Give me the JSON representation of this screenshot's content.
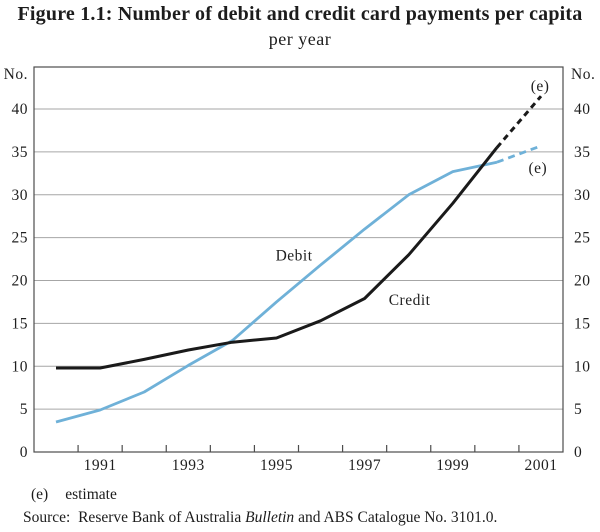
{
  "figure": {
    "title": "Figure 1.1:  Number of debit and credit card payments per capita",
    "subtitle": "per year",
    "footnote_marker": "(e)",
    "footnote_text": "estimate",
    "source_prefix": "Source:  Reserve Bank of Australia ",
    "source_italic": "Bulletin",
    "source_suffix": " and ABS Catalogue No. 3101.0."
  },
  "chart_data": {
    "type": "line",
    "title": "Figure 1.1: Number of debit and credit card payments per capita",
    "subtitle": "per year",
    "ylabel": "No.",
    "ylabel_right": "No.",
    "ylim": [
      0,
      44.9
    ],
    "yticks": [
      0,
      5,
      10,
      15,
      20,
      25,
      30,
      35,
      40
    ],
    "xlim": [
      1990,
      2002
    ],
    "xticks": [
      1991,
      1992,
      1993,
      1994,
      1995,
      1996,
      1997,
      1998,
      1999,
      2000,
      2001
    ],
    "xtick_label_years": [
      1991,
      1993,
      1995,
      1997,
      1999,
      2001
    ],
    "xtick_labels": [
      "1991",
      "1993",
      "1995",
      "1997",
      "1999",
      "2001"
    ],
    "grid": true,
    "legend": "inline-labels",
    "x": [
      1990,
      1991,
      1992,
      1993,
      1994,
      1995,
      1996,
      1997,
      1998,
      1999,
      2000,
      2001
    ],
    "point_offset_years": 0.5,
    "series": [
      {
        "name": "Debit",
        "color": "#6fb1d8",
        "width": 2.8,
        "dash": "7 5",
        "dashed_from_index": 10,
        "values": [
          3.5,
          4.9,
          7.0,
          10.1,
          13.0,
          17.5,
          21.8,
          26.0,
          30.0,
          32.7,
          33.8,
          35.7
        ],
        "last_value_is_estimate": true
      },
      {
        "name": "Credit",
        "color": "#1a1a1a",
        "width": 3,
        "dash": "6 4.5",
        "dashed_from_index": 10,
        "values": [
          9.8,
          9.8,
          10.8,
          11.9,
          12.8,
          13.3,
          15.3,
          17.9,
          23.0,
          29.0,
          35.5,
          41.5
        ],
        "last_value_is_estimate": true
      }
    ],
    "annotations": [
      {
        "text": "Debit",
        "x": 1995.9,
        "y": 22.9
      },
      {
        "text": "Credit",
        "x": 1998.52,
        "y": 17.7
      },
      {
        "text": "(e)",
        "x": 2001.48,
        "y": 42.7
      },
      {
        "text": "(e)",
        "x": 2001.43,
        "y": 33.1
      }
    ],
    "colors": {
      "gridline": "#a6a6a6",
      "frame": "#4d4d4d",
      "text": "#1f1f1f"
    }
  }
}
